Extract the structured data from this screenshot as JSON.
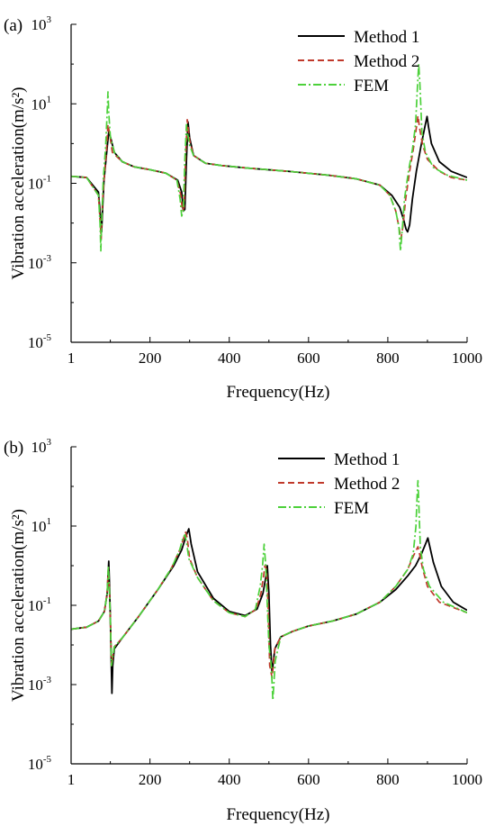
{
  "colors": {
    "method1": "#000000",
    "method2": "#c0392b",
    "fem": "#4cd13a"
  },
  "chart_data": [
    {
      "type": "line",
      "panel_label": "(a)",
      "xlabel": "Frequency(Hz)",
      "ylabel": "Vibration acceleration(m/s²)",
      "yscale": "log",
      "xlim": [
        1,
        1000
      ],
      "ylim": [
        1e-05,
        1000
      ],
      "x_ticks": [
        "1",
        "200",
        "400",
        "600",
        "800",
        "1000"
      ],
      "y_ticks": [
        {
          "base": "10",
          "exp": "-5"
        },
        {
          "base": "10",
          "exp": "-3"
        },
        {
          "base": "10",
          "exp": "-1"
        },
        {
          "base": "10",
          "exp": "1"
        },
        {
          "base": "10",
          "exp": "3"
        }
      ],
      "legend_position": "top-right",
      "series": [
        {
          "name": "Method 1",
          "style": "solid",
          "x": [
            1,
            40,
            70,
            75,
            78,
            81,
            84,
            90,
            96,
            100,
            110,
            130,
            160,
            200,
            240,
            270,
            280,
            284,
            288,
            292,
            296,
            300,
            310,
            340,
            380,
            450,
            550,
            650,
            720,
            780,
            810,
            830,
            840,
            846,
            850,
            855,
            862,
            872,
            884,
            893,
            899,
            903,
            910,
            930,
            960,
            1000
          ],
          "y": [
            0.15,
            0.14,
            0.06,
            0.015,
            0.006,
            0.03,
            0.12,
            0.5,
            2.0,
            1.5,
            0.6,
            0.35,
            0.26,
            0.22,
            0.18,
            0.12,
            0.06,
            0.02,
            0.022,
            0.4,
            3.5,
            1.4,
            0.5,
            0.32,
            0.28,
            0.24,
            0.2,
            0.16,
            0.13,
            0.09,
            0.05,
            0.025,
            0.012,
            0.007,
            0.006,
            0.009,
            0.04,
            0.2,
            0.9,
            2.5,
            4.8,
            2.5,
            1.0,
            0.35,
            0.2,
            0.14
          ]
        },
        {
          "name": "Method 2",
          "style": "dashed",
          "x": [
            1,
            40,
            70,
            74,
            77,
            80,
            84,
            90,
            94,
            98,
            105,
            130,
            160,
            200,
            240,
            268,
            278,
            282,
            286,
            290,
            294,
            300,
            310,
            340,
            380,
            450,
            550,
            650,
            720,
            780,
            805,
            820,
            828,
            833,
            838,
            845,
            855,
            865,
            872,
            876,
            880,
            888,
            900,
            930,
            960,
            1000
          ],
          "y": [
            0.15,
            0.14,
            0.05,
            0.012,
            0.004,
            0.03,
            0.12,
            0.6,
            3.0,
            1.8,
            0.6,
            0.35,
            0.26,
            0.22,
            0.18,
            0.12,
            0.05,
            0.02,
            0.025,
            0.5,
            4.0,
            1.2,
            0.5,
            0.32,
            0.28,
            0.24,
            0.2,
            0.16,
            0.13,
            0.09,
            0.05,
            0.02,
            0.008,
            0.004,
            0.008,
            0.04,
            0.2,
            0.8,
            2.5,
            5.0,
            2.5,
            0.9,
            0.4,
            0.2,
            0.14,
            0.12
          ]
        },
        {
          "name": "FEM",
          "style": "dash-dot",
          "x": [
            1,
            40,
            70,
            74,
            76,
            78,
            82,
            88,
            92,
            94,
            96,
            100,
            110,
            130,
            160,
            200,
            240,
            268,
            276,
            280,
            284,
            288,
            292,
            296,
            300,
            310,
            340,
            380,
            450,
            550,
            650,
            720,
            780,
            805,
            820,
            828,
            832,
            836,
            842,
            852,
            862,
            870,
            875,
            878,
            881,
            886,
            895,
            915,
            950,
            1000
          ],
          "y": [
            0.15,
            0.14,
            0.05,
            0.01,
            0.002,
            0.01,
            0.12,
            0.8,
            6.0,
            20.0,
            6.0,
            1.5,
            0.6,
            0.35,
            0.26,
            0.22,
            0.18,
            0.12,
            0.04,
            0.015,
            0.02,
            0.4,
            3.0,
            1.5,
            0.9,
            0.5,
            0.32,
            0.28,
            0.24,
            0.2,
            0.16,
            0.13,
            0.09,
            0.05,
            0.02,
            0.008,
            0.002,
            0.006,
            0.04,
            0.2,
            0.7,
            3.0,
            30.0,
            100.0,
            30.0,
            2.0,
            0.6,
            0.25,
            0.16,
            0.12
          ]
        }
      ]
    },
    {
      "type": "line",
      "panel_label": "(b)",
      "xlabel": "Frequency(Hz)",
      "ylabel": "Vibration acceleration(m/s²)",
      "yscale": "log",
      "xlim": [
        1,
        1000
      ],
      "ylim": [
        1e-05,
        1000
      ],
      "x_ticks": [
        "1",
        "200",
        "400",
        "600",
        "800",
        "1000"
      ],
      "y_ticks": [
        {
          "base": "10",
          "exp": "-5"
        },
        {
          "base": "10",
          "exp": "-3"
        },
        {
          "base": "10",
          "exp": "-1"
        },
        {
          "base": "10",
          "exp": "1"
        },
        {
          "base": "10",
          "exp": "3"
        }
      ],
      "legend_position": "top-right",
      "series": [
        {
          "name": "Method 1",
          "style": "solid",
          "x": [
            1,
            40,
            70,
            85,
            92,
            96,
            98,
            100,
            102,
            104,
            106,
            110,
            130,
            170,
            220,
            260,
            280,
            292,
            298,
            304,
            320,
            360,
            400,
            440,
            470,
            485,
            492,
            496,
            500,
            504,
            508,
            515,
            530,
            560,
            600,
            660,
            720,
            780,
            820,
            850,
            870,
            885,
            895,
            901,
            906,
            915,
            935,
            965,
            1000
          ],
          "y": [
            0.025,
            0.028,
            0.04,
            0.07,
            0.2,
            1.3,
            0.3,
            0.05,
            0.005,
            0.0006,
            0.003,
            0.008,
            0.015,
            0.05,
            0.25,
            1.0,
            2.5,
            6.0,
            8.5,
            3.5,
            0.7,
            0.15,
            0.07,
            0.055,
            0.08,
            0.2,
            0.5,
            1.0,
            0.2,
            0.01,
            0.002,
            0.008,
            0.016,
            0.022,
            0.03,
            0.04,
            0.06,
            0.12,
            0.25,
            0.55,
            1.0,
            2.0,
            3.5,
            5.0,
            3.0,
            1.2,
            0.3,
            0.12,
            0.075
          ]
        },
        {
          "name": "Method 2",
          "style": "dashed",
          "x": [
            1,
            40,
            70,
            85,
            92,
            95,
            98,
            101,
            103,
            106,
            110,
            130,
            170,
            220,
            255,
            275,
            285,
            290,
            294,
            300,
            320,
            360,
            400,
            440,
            468,
            480,
            486,
            490,
            494,
            498,
            502,
            508,
            515,
            530,
            560,
            600,
            660,
            720,
            780,
            820,
            850,
            865,
            872,
            876,
            880,
            887,
            900,
            930,
            1000
          ],
          "y": [
            0.025,
            0.028,
            0.04,
            0.07,
            0.2,
            0.9,
            0.2,
            0.02,
            0.003,
            0.005,
            0.009,
            0.015,
            0.05,
            0.25,
            0.9,
            2.5,
            5.0,
            7.0,
            5.0,
            1.5,
            0.5,
            0.13,
            0.065,
            0.052,
            0.08,
            0.2,
            0.5,
            1.0,
            0.8,
            0.1,
            0.003,
            0.0015,
            0.008,
            0.016,
            0.022,
            0.03,
            0.04,
            0.06,
            0.12,
            0.3,
            0.8,
            1.8,
            2.5,
            3.0,
            2.0,
            0.9,
            0.3,
            0.12,
            0.065
          ]
        },
        {
          "name": "FEM",
          "style": "dash-dot",
          "x": [
            1,
            40,
            70,
            85,
            92,
            95,
            98,
            101,
            103,
            106,
            110,
            130,
            170,
            220,
            255,
            275,
            283,
            288,
            292,
            298,
            320,
            360,
            400,
            440,
            466,
            478,
            484,
            488,
            492,
            496,
            500,
            506,
            510,
            516,
            530,
            560,
            600,
            660,
            720,
            780,
            820,
            850,
            864,
            871,
            874,
            876,
            878,
            882,
            890,
            905,
            940,
            1000
          ],
          "y": [
            0.025,
            0.028,
            0.04,
            0.07,
            0.2,
            1.0,
            0.2,
            0.02,
            0.003,
            0.005,
            0.009,
            0.015,
            0.05,
            0.25,
            0.9,
            2.5,
            5.0,
            6.0,
            4.0,
            1.5,
            0.5,
            0.13,
            0.065,
            0.052,
            0.08,
            0.3,
            1.0,
            3.5,
            1.0,
            0.1,
            0.01,
            0.003,
            0.0004,
            0.004,
            0.016,
            0.022,
            0.03,
            0.04,
            0.06,
            0.12,
            0.3,
            0.8,
            2.0,
            10.0,
            60.0,
            140.0,
            40.0,
            3.0,
            0.8,
            0.3,
            0.12,
            0.065
          ]
        }
      ]
    }
  ]
}
